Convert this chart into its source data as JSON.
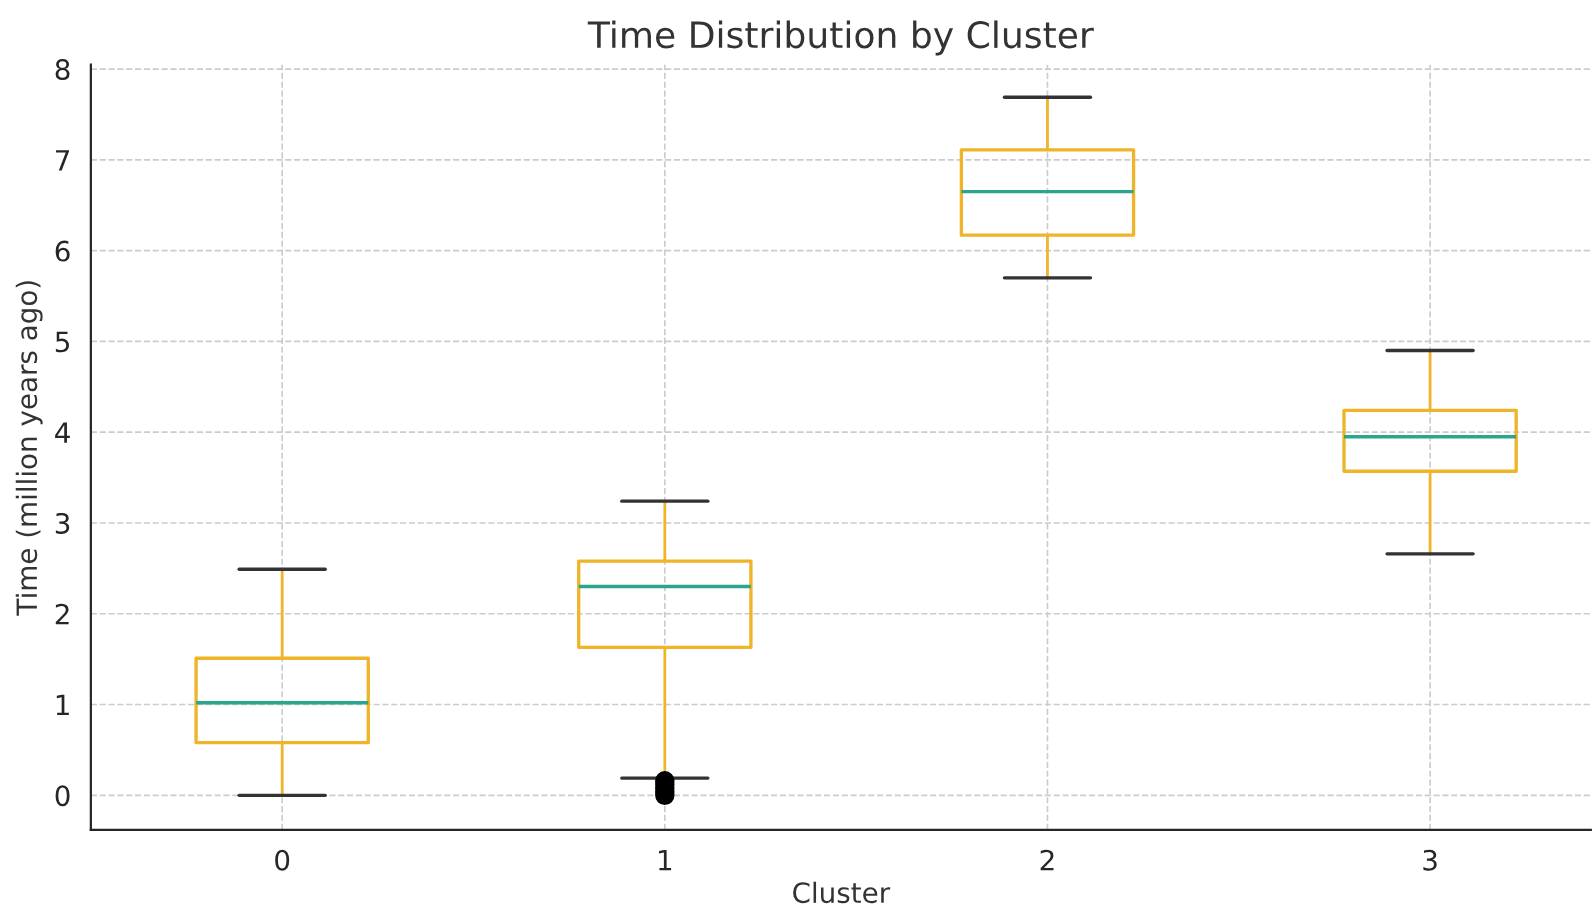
{
  "chart_data": {
    "type": "box",
    "title": "Time Distribution by Cluster",
    "xlabel": "Cluster",
    "ylabel": "Time (million years ago)",
    "categories": [
      "0",
      "1",
      "2",
      "3"
    ],
    "series": [
      {
        "color": "#f0b429",
        "boxes": [
          {
            "low": 0.0,
            "q1": 0.58,
            "median": 1.02,
            "q3": 1.51,
            "high": 2.49
          },
          {
            "low": 0.19,
            "q1": 1.63,
            "median": 2.3,
            "q3": 2.58,
            "high": 3.24,
            "outliers": [
              0.0,
              0.04,
              0.08,
              0.12,
              0.16
            ]
          },
          {
            "low": 5.7,
            "q1": 6.17,
            "median": 6.65,
            "q3": 7.11,
            "high": 7.69
          },
          {
            "low": 2.66,
            "q1": 3.57,
            "median": 3.95,
            "q3": 4.24,
            "high": 4.9
          }
        ]
      }
    ],
    "ylim": [
      -0.38,
      8.05
    ],
    "yticks": [
      0,
      1,
      2,
      3,
      4,
      5,
      6,
      7,
      8
    ],
    "grid": true
  }
}
